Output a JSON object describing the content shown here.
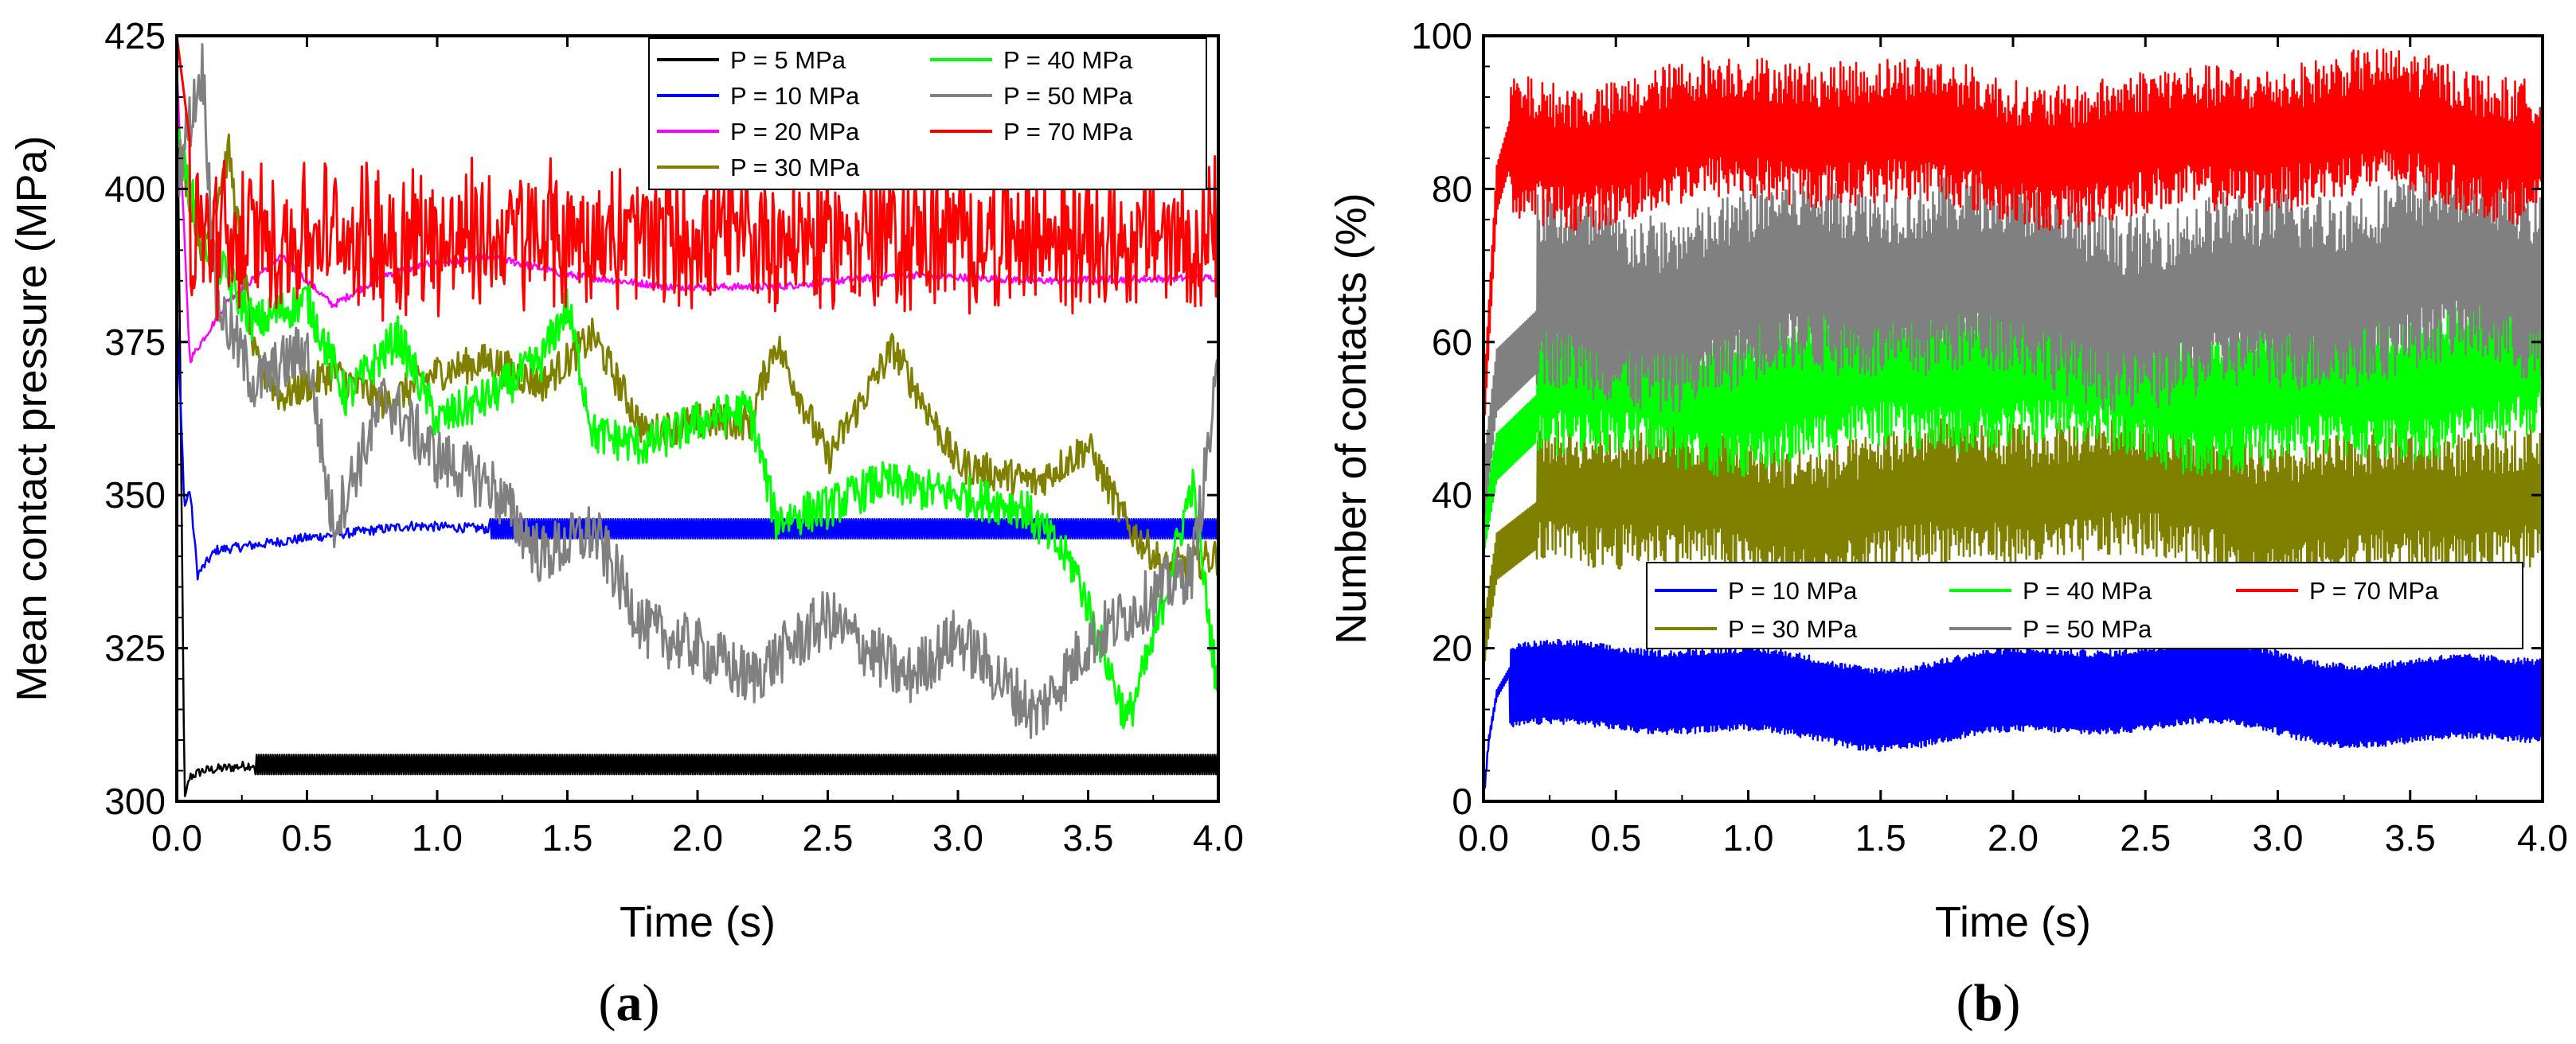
{
  "panels": [
    {
      "caption_open": "(",
      "caption_letter": "a",
      "caption_close": ")"
    },
    {
      "caption_open": "(",
      "caption_letter": "b",
      "caption_close": ")"
    }
  ],
  "chart_data": [
    {
      "type": "line",
      "title": "",
      "xlabel": "Time (s)",
      "ylabel": "Mean contact pressure (MPa)",
      "xlim": [
        0.0,
        4.0
      ],
      "ylim": [
        300,
        425
      ],
      "xticks": [
        "0.0",
        "0.5",
        "1.0",
        "1.5",
        "2.0",
        "2.5",
        "3.0",
        "3.5",
        "4.0"
      ],
      "yticks": [
        "300",
        "325",
        "350",
        "375",
        "400",
        "425"
      ],
      "grid": false,
      "legend_position": "top-right",
      "series": [
        {
          "name": "P = 5 MPa",
          "color": "#000000",
          "base": 306,
          "band": 3.2,
          "start": [
            [
              0,
              425
            ],
            [
              0.03,
              300
            ],
            [
              0.05,
              304
            ],
            [
              0.1,
              305
            ],
            [
              0.3,
              306
            ]
          ],
          "noise": 0.4
        },
        {
          "name": "P = 10 MPa",
          "color": "#0000ff",
          "base": 344.5,
          "band": 3.2,
          "start": [
            [
              0,
              380
            ],
            [
              0.03,
              348
            ],
            [
              0.05,
              351
            ],
            [
              0.08,
              337
            ],
            [
              0.15,
              341
            ],
            [
              0.5,
              343
            ],
            [
              0.9,
              345
            ],
            [
              1.2,
              344.5
            ]
          ],
          "noise": 0.4
        },
        {
          "name": "P = 20 MPa",
          "color": "#ff00ff",
          "base": 385.5,
          "band": 2.0,
          "points": [
            [
              0,
              420
            ],
            [
              0.05,
              372
            ],
            [
              0.2,
              382
            ],
            [
              0.4,
              389
            ],
            [
              0.6,
              381
            ],
            [
              0.8,
              386
            ],
            [
              1.0,
              388
            ],
            [
              1.2,
              389
            ],
            [
              1.5,
              386
            ],
            [
              1.9,
              384
            ],
            [
              2.3,
              384
            ],
            [
              2.8,
              386
            ],
            [
              3.3,
              385
            ],
            [
              4.0,
              385.5
            ]
          ],
          "noise": 0.6
        },
        {
          "name": "P = 30 MPa",
          "color": "#808000",
          "points": [
            [
              0,
              408
            ],
            [
              0.1,
              390
            ],
            [
              0.2,
              406
            ],
            [
              0.3,
              372
            ],
            [
              0.4,
              366
            ],
            [
              0.6,
              370
            ],
            [
              0.8,
              365
            ],
            [
              1.0,
              370
            ],
            [
              1.2,
              372
            ],
            [
              1.4,
              368
            ],
            [
              1.6,
              376
            ],
            [
              1.8,
              360
            ],
            [
              2.0,
              362
            ],
            [
              2.2,
              362
            ],
            [
              2.3,
              375
            ],
            [
              2.5,
              356
            ],
            [
              2.75,
              374
            ],
            [
              3.0,
              355
            ],
            [
              3.3,
              352
            ],
            [
              3.5,
              358
            ],
            [
              3.65,
              345
            ],
            [
              3.8,
              338
            ],
            [
              4.0,
              340
            ]
          ],
          "noise": 3.0
        },
        {
          "name": "P = 40 MPa",
          "color": "#00ff00",
          "points": [
            [
              0,
              408
            ],
            [
              0.1,
              392
            ],
            [
              0.3,
              378
            ],
            [
              0.5,
              382
            ],
            [
              0.65,
              366
            ],
            [
              0.85,
              376
            ],
            [
              1.0,
              362
            ],
            [
              1.2,
              366
            ],
            [
              1.4,
              372
            ],
            [
              1.5,
              381
            ],
            [
              1.6,
              360
            ],
            [
              1.8,
              358
            ],
            [
              2.0,
              362
            ],
            [
              2.2,
              364
            ],
            [
              2.3,
              346
            ],
            [
              2.5,
              348
            ],
            [
              2.7,
              352
            ],
            [
              3.0,
              350
            ],
            [
              3.25,
              348
            ],
            [
              3.45,
              338
            ],
            [
              3.65,
              313
            ],
            [
              3.75,
              326
            ],
            [
              3.9,
              352
            ],
            [
              4.0,
              317
            ]
          ],
          "noise": 3.5
        },
        {
          "name": "P = 50 MPa",
          "color": "#808080",
          "points": [
            [
              0,
              402
            ],
            [
              0.1,
              420
            ],
            [
              0.15,
              382
            ],
            [
              0.3,
              368
            ],
            [
              0.5,
              374
            ],
            [
              0.6,
              345
            ],
            [
              0.8,
              366
            ],
            [
              1.0,
              356
            ],
            [
              1.2,
              352
            ],
            [
              1.4,
              340
            ],
            [
              1.6,
              344
            ],
            [
              1.8,
              328
            ],
            [
              2.0,
              325
            ],
            [
              2.2,
              320
            ],
            [
              2.5,
              330
            ],
            [
              2.8,
              320
            ],
            [
              3.0,
              327
            ],
            [
              3.3,
              314
            ],
            [
              3.5,
              326
            ],
            [
              3.7,
              332
            ],
            [
              3.9,
              338
            ],
            [
              4.0,
              370
            ]
          ],
          "noise": 5.0
        },
        {
          "name": "P = 70 MPa",
          "color": "#ff0000",
          "base": 392,
          "amp": 10,
          "start": [
            [
              0,
              425
            ],
            [
              0.05,
              408
            ]
          ],
          "noise": 9
        }
      ]
    },
    {
      "type": "line",
      "title": "",
      "xlabel": "Time (s)",
      "ylabel": "Number of contacts (%)",
      "xlim": [
        0.0,
        4.0
      ],
      "ylim": [
        0,
        100
      ],
      "xticks": [
        "0.0",
        "0.5",
        "1.0",
        "1.5",
        "2.0",
        "2.5",
        "3.0",
        "3.5",
        "4.0"
      ],
      "yticks": [
        "0",
        "20",
        "40",
        "60",
        "80",
        "100"
      ],
      "grid": false,
      "legend_position": "middle-right",
      "series": [
        {
          "name": "P = 10 MPa",
          "color": "#0000ff",
          "low": 9,
          "high": 19,
          "rise": [
            [
              0,
              0
            ],
            [
              0.02,
              8
            ],
            [
              0.05,
              14
            ],
            [
              0.1,
              17
            ]
          ],
          "noise": 0.5
        },
        {
          "name": "P = 30 MPa",
          "color": "#808000",
          "low": 33,
          "high": 46,
          "rise": [
            [
              0,
              20
            ],
            [
              0.05,
              32
            ],
            [
              0.2,
              36
            ]
          ],
          "noise": 3
        },
        {
          "name": "P = 40 MPa",
          "color": "#00ff00",
          "low": 48,
          "high": 62,
          "rise": [
            [
              0,
              35
            ],
            [
              0.05,
              45
            ],
            [
              0.2,
              50
            ]
          ],
          "noise": 3
        },
        {
          "name": "P = 50 MPa",
          "color": "#808080",
          "low": 58,
          "high": 76,
          "rise": [
            [
              0,
              40
            ],
            [
              0.05,
              55
            ],
            [
              0.2,
              60
            ]
          ],
          "noise": 4
        },
        {
          "name": "P = 70 MPa",
          "color": "#ff0000",
          "low": 80,
          "high": 93,
          "rise": [
            [
              0,
              50
            ],
            [
              0.05,
              80
            ],
            [
              0.1,
              86
            ]
          ],
          "noise": 3
        }
      ]
    }
  ]
}
